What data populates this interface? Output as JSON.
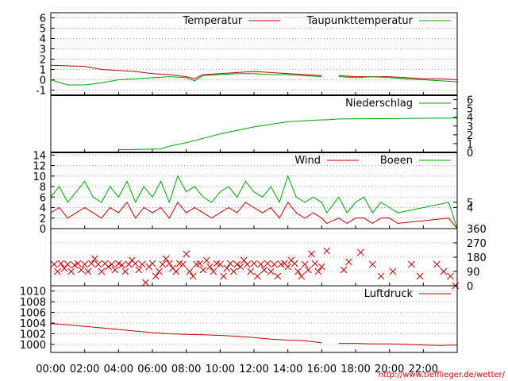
{
  "credit": "http://www.tiefflieger.de/wetter/",
  "colors": {
    "red": "#c00000",
    "green": "#00a000",
    "grid": "#999999",
    "credit": "#e00000"
  },
  "x_axis": {
    "range_hours": [
      0,
      24
    ],
    "tick_hours": [
      0,
      2,
      4,
      6,
      8,
      10,
      12,
      14,
      16,
      18,
      20,
      22
    ],
    "tick_labels": [
      "00:00",
      "02:00",
      "04:00",
      "06:00",
      "08:00",
      "10:00",
      "12:00",
      "14:00",
      "16:00",
      "18:00",
      "20:00",
      "22:00"
    ]
  },
  "chart_data": [
    {
      "type": "line",
      "ylim": [
        -1.5,
        6.5
      ],
      "y_ticks": [
        -1,
        0,
        1,
        2,
        3,
        4,
        5,
        6
      ],
      "y_tick_labels": [
        "-1",
        "0",
        "1",
        "2",
        "3",
        "4",
        "5",
        "6"
      ],
      "grid": true,
      "legend_placement": "top-right",
      "series": [
        {
          "name": "Temperatur",
          "color": "#c00000",
          "x": [
            0,
            2,
            3,
            4,
            5,
            6,
            7,
            8,
            8.5,
            9,
            10,
            11,
            12,
            13,
            14,
            15,
            16,
            16.3,
            17,
            18,
            19,
            20,
            21,
            22,
            23,
            24
          ],
          "y": [
            1.4,
            1.3,
            1.0,
            0.9,
            0.8,
            0.6,
            0.5,
            0.3,
            0.1,
            0.5,
            0.6,
            0.7,
            0.8,
            0.7,
            0.6,
            0.5,
            0.4,
            null,
            0.4,
            0.3,
            0.3,
            0.3,
            0.2,
            0.1,
            0.1,
            0.0
          ]
        },
        {
          "name": "Taupunkttemperatur",
          "color": "#00a000",
          "x": [
            0,
            1,
            2,
            3,
            4,
            5,
            6,
            7,
            8,
            8.5,
            9,
            10,
            11,
            12,
            13,
            14,
            15,
            16,
            16.3,
            17,
            18,
            19,
            20,
            21,
            22,
            23,
            24
          ],
          "y": [
            0.0,
            -0.5,
            -0.5,
            -0.3,
            0.0,
            0.1,
            0.2,
            0.3,
            0.2,
            -0.1,
            0.4,
            0.5,
            0.6,
            0.6,
            0.5,
            0.5,
            0.4,
            0.3,
            null,
            0.3,
            0.2,
            0.3,
            0.2,
            0.1,
            0.0,
            -0.1,
            -0.2
          ]
        }
      ]
    },
    {
      "type": "line",
      "ylim": [
        0,
        6.5
      ],
      "y2_ticks": [
        0,
        1,
        2,
        3,
        4,
        5,
        6
      ],
      "y2_tick_labels": [
        "0",
        "1",
        "2",
        "3",
        "4",
        "5",
        "6"
      ],
      "grid": false,
      "legend_placement": "top-right",
      "series": [
        {
          "name": "Niederschlag",
          "color": "#00a000",
          "x": [
            4,
            6.5,
            7,
            8,
            9,
            10,
            11,
            12,
            13,
            14,
            15,
            16,
            16.3,
            17,
            24
          ],
          "y": [
            0.3,
            0.4,
            0.7,
            1.1,
            1.6,
            2.1,
            2.5,
            2.9,
            3.2,
            3.5,
            3.6,
            3.7,
            3.7,
            3.8,
            3.9
          ]
        }
      ]
    },
    {
      "type": "line",
      "ylim": [
        0,
        14.5
      ],
      "y_ticks": [
        0,
        2,
        4,
        6,
        8,
        10,
        12,
        14
      ],
      "y_tick_labels": [
        "0",
        "2",
        "4",
        "6",
        "8",
        "10",
        "12",
        "14"
      ],
      "y2_ticks": [
        4,
        5
      ],
      "y2_tick_labels": [
        "4",
        "5"
      ],
      "grid": true,
      "legend_placement": "top-right",
      "series": [
        {
          "name": "Wind",
          "color": "#c00000",
          "x": [
            0,
            0.5,
            1,
            1.5,
            2,
            2.5,
            3,
            3.5,
            4,
            4.5,
            5,
            5.5,
            6,
            6.5,
            7,
            7.5,
            8,
            8.5,
            9,
            9.5,
            10,
            10.5,
            11,
            11.5,
            12,
            12.5,
            13,
            13.5,
            14,
            14.5,
            15,
            15.5,
            16,
            16.3,
            17,
            17.5,
            18,
            18.5,
            19,
            19.5,
            20,
            20.5,
            23.5,
            24
          ],
          "y": [
            3,
            4,
            2,
            3,
            4,
            3,
            2,
            4,
            3,
            5,
            2,
            4,
            3,
            4,
            2,
            5,
            3,
            4,
            3,
            2,
            3,
            4,
            3,
            5,
            4,
            3,
            4,
            2,
            5,
            3,
            2,
            3,
            2,
            1,
            2,
            1,
            2,
            2,
            1,
            2,
            2,
            1,
            2,
            0
          ]
        },
        {
          "name": "Boeen",
          "color": "#00a000",
          "x": [
            0,
            0.5,
            1,
            1.5,
            2,
            2.5,
            3,
            3.5,
            4,
            4.5,
            5,
            5.5,
            6,
            6.5,
            7,
            7.5,
            8,
            8.5,
            9,
            9.5,
            10,
            10.5,
            11,
            11.5,
            12,
            12.5,
            13,
            13.5,
            14,
            14.5,
            15,
            15.5,
            16,
            16.3,
            17,
            17.5,
            18,
            18.5,
            19,
            19.5,
            20,
            20.5,
            23.5,
            24
          ],
          "y": [
            6,
            8,
            5,
            7,
            9,
            6,
            5,
            8,
            6,
            9,
            5,
            8,
            6,
            9,
            5,
            10,
            7,
            8,
            6,
            5,
            7,
            8,
            6,
            9,
            7,
            6,
            8,
            5,
            10,
            6,
            5,
            6,
            5,
            3,
            6,
            3,
            5,
            6,
            3,
            5,
            4,
            3,
            5,
            0
          ]
        }
      ]
    },
    {
      "type": "scatter",
      "ylim": [
        0,
        360
      ],
      "y2_ticks": [
        0,
        90,
        180,
        270,
        360
      ],
      "y2_tick_labels": [
        "0",
        "90",
        "180",
        "270",
        "360"
      ],
      "grid": true,
      "series": [
        {
          "name": "",
          "color": "#c00000",
          "marker": "x",
          "x": [
            0.2,
            0.4,
            0.6,
            0.8,
            1.0,
            1.2,
            1.4,
            1.6,
            1.8,
            2.0,
            2.2,
            2.4,
            2.6,
            2.8,
            3.0,
            3.2,
            3.4,
            3.6,
            3.8,
            4.0,
            4.2,
            4.4,
            4.6,
            4.8,
            5.0,
            5.2,
            5.4,
            5.6,
            5.8,
            6.0,
            6.2,
            6.4,
            6.6,
            6.8,
            7.0,
            7.2,
            7.4,
            7.6,
            7.8,
            8.0,
            8.2,
            8.4,
            8.6,
            8.8,
            9.0,
            9.2,
            9.4,
            9.6,
            9.8,
            10.0,
            10.2,
            10.4,
            10.6,
            10.8,
            11.0,
            11.2,
            11.4,
            11.6,
            11.8,
            12.0,
            12.2,
            12.4,
            12.6,
            12.8,
            13.0,
            13.2,
            13.4,
            13.6,
            13.8,
            14.0,
            14.2,
            14.4,
            14.6,
            14.8,
            15.0,
            15.2,
            15.4,
            15.6,
            15.8,
            16.0,
            16.3,
            17.3,
            17.6,
            18.3,
            19.0,
            19.5,
            20.2,
            21.3,
            21.8,
            22.8,
            23.2,
            23.6,
            23.9
          ],
          "y": [
            135,
            90,
            140,
            110,
            135,
            90,
            130,
            140,
            100,
            135,
            90,
            140,
            170,
            135,
            90,
            140,
            120,
            135,
            100,
            140,
            130,
            90,
            135,
            160,
            140,
            100,
            135,
            20,
            120,
            140,
            60,
            90,
            135,
            170,
            140,
            110,
            90,
            140,
            135,
            200,
            90,
            60,
            135,
            140,
            100,
            160,
            120,
            90,
            140,
            135,
            60,
            110,
            140,
            90,
            135,
            120,
            160,
            135,
            90,
            140,
            60,
            135,
            100,
            140,
            90,
            135,
            60,
            135,
            140,
            120,
            160,
            140,
            90,
            60,
            135,
            100,
            200,
            140,
            90,
            120,
            220,
            100,
            150,
            210,
            135,
            60,
            90,
            135,
            60,
            135,
            90,
            60,
            0
          ]
        }
      ]
    },
    {
      "type": "line",
      "ylim": [
        998.5,
        1011
      ],
      "y_ticks": [
        1000,
        1002,
        1004,
        1006,
        1008,
        1010
      ],
      "y_tick_labels": [
        "1000",
        "1002",
        "1004",
        "1006",
        "1008",
        "1010"
      ],
      "grid": true,
      "legend_placement": "top-right",
      "series": [
        {
          "name": "Luftdruck",
          "color": "#c00000",
          "x": [
            0,
            1,
            2,
            3,
            4,
            5,
            6,
            7,
            8,
            9,
            10,
            11,
            12,
            13,
            14,
            15,
            16,
            16.3,
            17,
            18,
            19,
            20,
            21,
            22,
            23,
            24
          ],
          "y": [
            1003.9,
            1003.7,
            1003.4,
            1003.1,
            1002.8,
            1002.5,
            1002.2,
            1002.0,
            1001.9,
            1001.8,
            1001.7,
            1001.5,
            1001.3,
            1001.0,
            1000.8,
            1000.7,
            1000.3,
            null,
            1000.2,
            1000.2,
            1000.1,
            1000.1,
            1000.0,
            999.9,
            999.8,
            999.9
          ]
        }
      ]
    }
  ]
}
